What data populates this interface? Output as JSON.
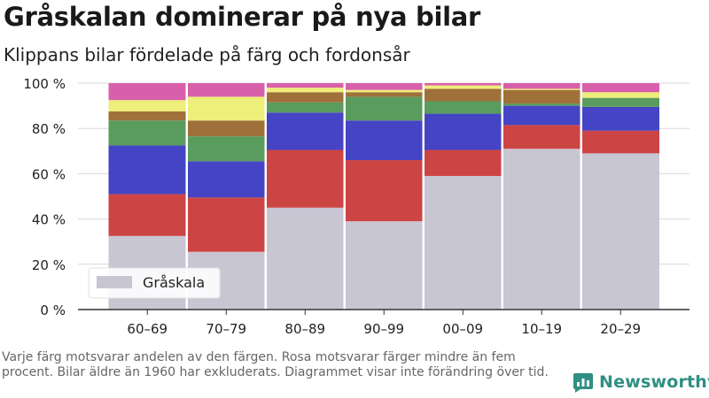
{
  "header": {
    "title": "Gråskalan dominerar på nya bilar",
    "subtitle": "Klippans bilar fördelade på färg och fordonsår"
  },
  "caption": "Varje färg motsvarar andelen av den färgen. Rosa motsvarar färger mindre än fem procent. Bilar äldre än 1960 har exkluderats. Diagrammet visar inte förändring över tid.",
  "brand": {
    "name": "Newsworthy",
    "color": "#2f8f83"
  },
  "chart_data": {
    "type": "bar",
    "stacked": true,
    "categories": [
      "60–69",
      "70–79",
      "80–89",
      "90–99",
      "00–09",
      "10–19",
      "20–29"
    ],
    "ylim": [
      0,
      100
    ],
    "y_ticks": [
      "0 %",
      "20 %",
      "40 %",
      "60 %",
      "80 %",
      "100 %"
    ],
    "grid": true,
    "legend": {
      "label": "Gråskala",
      "position": "bottom-left"
    },
    "series": [
      {
        "name": "Gråskala",
        "color": "#c8c6d2",
        "values": [
          32.5,
          25.5,
          45,
          39,
          59,
          71,
          69
        ]
      },
      {
        "color": "#cc4444",
        "values": [
          18.5,
          24,
          25.5,
          27,
          11.5,
          10.5,
          10
        ]
      },
      {
        "color": "#4444c4",
        "values": [
          21.5,
          16,
          16.5,
          17.5,
          16,
          8.5,
          10.5
        ]
      },
      {
        "color": "#5a9c5e",
        "values": [
          11,
          11,
          4.5,
          10.5,
          5.5,
          1,
          4
        ]
      },
      {
        "color": "#a0703a",
        "values": [
          4,
          7,
          4.5,
          2,
          5.5,
          6,
          0
        ]
      },
      {
        "color": "#eeee7a",
        "values": [
          5,
          10.5,
          2,
          1,
          1.5,
          0.5,
          2.5
        ]
      },
      {
        "color": "#d860aa",
        "values": [
          7.5,
          6,
          2,
          3,
          1,
          2.5,
          4
        ]
      }
    ]
  }
}
